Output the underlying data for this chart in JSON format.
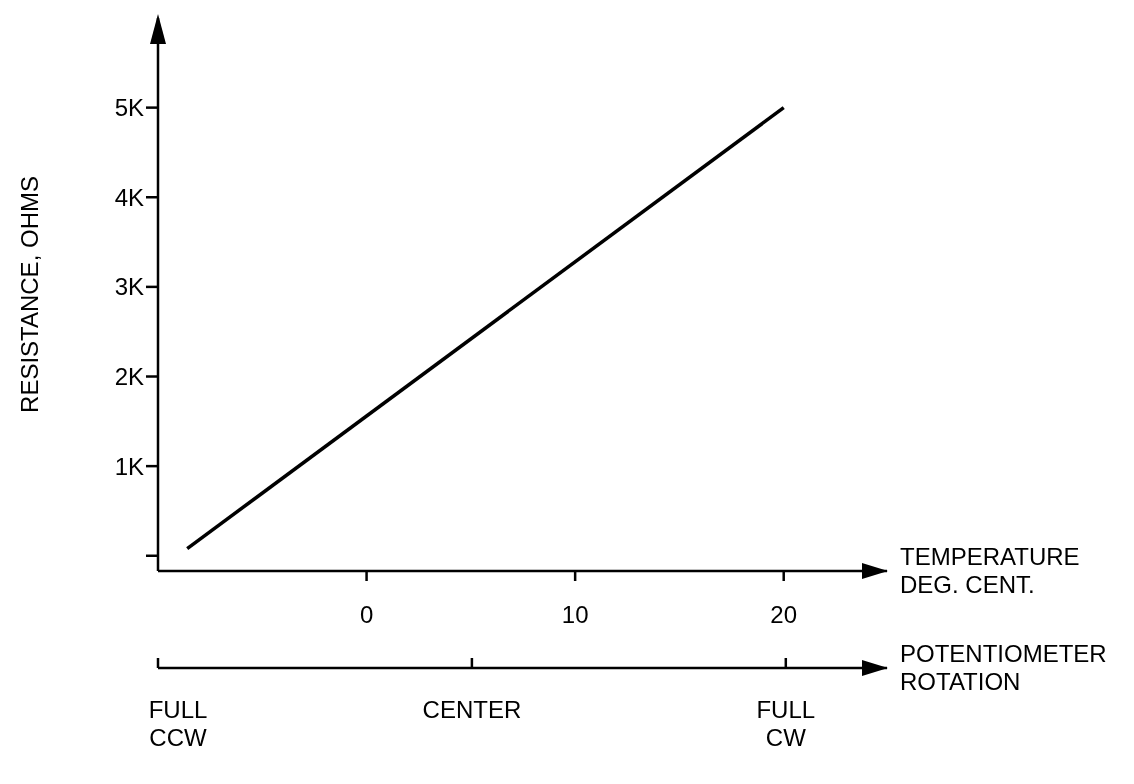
{
  "chart_data": {
    "type": "line",
    "xlabel": "TEMPERATURE\nDEG. CENT.",
    "x2label": "POTENTIOMETER\nROTATION",
    "ylabel": "RESISTANCE, OHMS",
    "xlim": [
      -10,
      25
    ],
    "xticks": [
      0,
      10,
      20
    ],
    "annotations": [
      "FULL\nCCW",
      "CENTER",
      "FULL\nCW"
    ],
    "ylim": [
      -170,
      6000
    ],
    "yticks": [
      {
        "value": 0,
        "label": null
      },
      {
        "value": 1000,
        "label": "1K"
      },
      {
        "value": 2000,
        "label": "2K"
      },
      {
        "value": 3000,
        "label": "3K"
      },
      {
        "value": 4000,
        "label": "4K"
      },
      {
        "value": 5000,
        "label": "5K"
      }
    ],
    "series": [
      {
        "color": "#000000",
        "x": [
          -8.6,
          20
        ],
        "values": [
          80,
          5000
        ]
      }
    ],
    "grid": false,
    "legend": false,
    "marker": "none",
    "line_style": "solid"
  }
}
